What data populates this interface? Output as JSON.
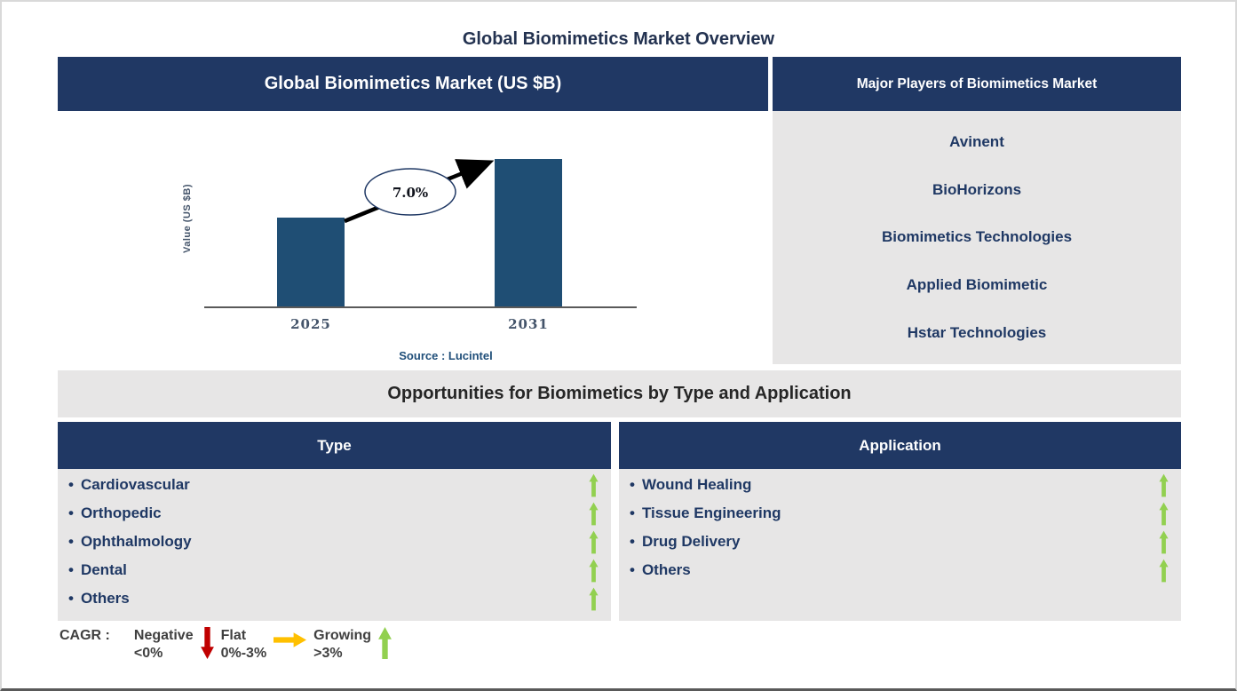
{
  "page_title": "Global Biomimetics Market Overview",
  "market_panel": {
    "header": "Global Biomimetics Market (US $B)"
  },
  "chart_data": {
    "type": "bar",
    "title": "Global Biomimetics Market (US $B)",
    "categories": [
      "2025",
      "2031"
    ],
    "values_relative": [
      0.6,
      1.0
    ],
    "ylabel": "Value (US $B)",
    "xlabel": "",
    "grid": false,
    "y_axis_tick_labels": [],
    "bar_color": "#1F4E74",
    "cagr_annotation": "7.0%",
    "source": "Source : Lucintel"
  },
  "players_panel": {
    "header": "Major Players of Biomimetics Market",
    "items": [
      "Avinent",
      "BioHorizons",
      "Biomimetics Technologies",
      "Applied Biomimetic",
      "Hstar Technologies"
    ]
  },
  "opportunities": {
    "banner": "Opportunities for Biomimetics by Type and Application",
    "bullet": "•",
    "type_panel": {
      "header": "Type",
      "items": [
        {
          "label": "Cardiovascular",
          "trend": "growing"
        },
        {
          "label": "Orthopedic",
          "trend": "growing"
        },
        {
          "label": "Ophthalmology",
          "trend": "growing"
        },
        {
          "label": "Dental",
          "trend": "growing"
        },
        {
          "label": "Others",
          "trend": "growing"
        }
      ]
    },
    "application_panel": {
      "header": "Application",
      "items": [
        {
          "label": "Wound Healing",
          "trend": "growing"
        },
        {
          "label": "Tissue Engineering",
          "trend": "growing"
        },
        {
          "label": "Drug Delivery",
          "trend": "growing"
        },
        {
          "label": "Others",
          "trend": "growing"
        }
      ]
    }
  },
  "legend": {
    "prefix": "CAGR :",
    "items": [
      {
        "label": "Negative",
        "range": "<0%",
        "direction": "down",
        "color": "#C00000"
      },
      {
        "label": "Flat",
        "range": "0%-3%",
        "direction": "right",
        "color": "#FFC000"
      },
      {
        "label": "Growing",
        "range": ">3%",
        "direction": "up",
        "color": "#92D050"
      }
    ]
  },
  "colors": {
    "header_navy": "#203864",
    "panel_gray": "#E7E6E6",
    "bar_blue": "#1F4E74",
    "item_text_navy": "#1F3864",
    "growing_green": "#92D050",
    "negative_red": "#C00000",
    "flat_yellow": "#FFC000",
    "axis_gray": "#595959"
  }
}
